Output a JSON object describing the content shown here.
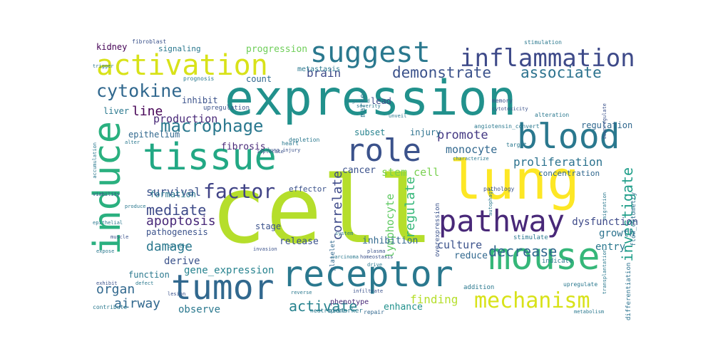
{
  "words": [
    {
      "text": "cell",
      "color": "#b5de2b",
      "vertical": false
    },
    {
      "text": "expression",
      "color": "#21918c",
      "vertical": false
    },
    {
      "text": "lung",
      "color": "#fde725",
      "vertical": false
    },
    {
      "text": "tissue",
      "color": "#22a884",
      "vertical": false
    },
    {
      "text": "receptor",
      "color": "#2a788e",
      "vertical": false
    },
    {
      "text": "mouse",
      "color": "#35b779",
      "vertical": false
    },
    {
      "text": "blood",
      "color": "#2a788e",
      "vertical": false
    },
    {
      "text": "induce",
      "color": "#2ab07f",
      "vertical": true
    },
    {
      "text": "tumor",
      "color": "#31688e",
      "vertical": false
    },
    {
      "text": "suggest",
      "color": "#2a788e",
      "vertical": false
    },
    {
      "text": "activation",
      "color": "#d8e219",
      "vertical": false
    },
    {
      "text": "role",
      "color": "#3b528b",
      "vertical": false
    },
    {
      "text": "pathway",
      "color": "#482878",
      "vertical": false
    },
    {
      "text": "inflammation",
      "color": "#3e4a89",
      "vertical": false
    },
    {
      "text": "mechanism",
      "color": "#d8e219",
      "vertical": false
    },
    {
      "text": "factor",
      "color": "#414487",
      "vertical": false
    },
    {
      "text": "cytokine",
      "color": "#31688e",
      "vertical": false
    },
    {
      "text": "macrophage",
      "color": "#2a788e",
      "vertical": false
    },
    {
      "text": "demonstrate",
      "color": "#3b528b",
      "vertical": false
    },
    {
      "text": "associate",
      "color": "#2c728e",
      "vertical": false
    },
    {
      "text": "mediate",
      "color": "#3e4a89",
      "vertical": false
    },
    {
      "text": "investigate",
      "color": "#1f9e89",
      "vertical": true
    },
    {
      "text": "decrease",
      "color": "#31688e",
      "vertical": false
    },
    {
      "text": "activate",
      "color": "#26828e",
      "vertical": false
    },
    {
      "text": "regulate",
      "color": "#35b779",
      "vertical": true
    },
    {
      "text": "correlate",
      "color": "#3e4a89",
      "vertical": true
    },
    {
      "text": "damage",
      "color": "#2a788e",
      "vertical": false
    },
    {
      "text": "apoptosis",
      "color": "#482878",
      "vertical": false
    },
    {
      "text": "survival",
      "color": "#3b528b",
      "vertical": false
    },
    {
      "text": "promote",
      "color": "#443983",
      "vertical": false
    },
    {
      "text": "proliferation",
      "color": "#2c728e",
      "vertical": false
    },
    {
      "text": "monocyte",
      "color": "#31688e",
      "vertical": false
    },
    {
      "text": "lymphocyte",
      "color": "#5ec962",
      "vertical": true
    },
    {
      "text": "stem_cell",
      "color": "#7ad151",
      "vertical": false
    },
    {
      "text": "line",
      "color": "#440154",
      "vertical": false
    },
    {
      "text": "brain",
      "color": "#3e4a89",
      "vertical": false
    },
    {
      "text": "production",
      "color": "#482878",
      "vertical": false
    },
    {
      "text": "organ",
      "color": "#31688e",
      "vertical": false
    },
    {
      "text": "airway",
      "color": "#31688e",
      "vertical": false
    },
    {
      "text": "finding",
      "color": "#b5de2b",
      "vertical": false
    },
    {
      "text": "progression",
      "color": "#6ece58",
      "vertical": false
    },
    {
      "text": "gene_expression",
      "color": "#26828e",
      "vertical": false
    },
    {
      "text": "observe",
      "color": "#2a788e",
      "vertical": false
    },
    {
      "text": "culture",
      "color": "#3b528b",
      "vertical": false
    },
    {
      "text": "growth",
      "color": "#2c728e",
      "vertical": false
    },
    {
      "text": "dysfunction",
      "color": "#3e4a89",
      "vertical": false
    },
    {
      "text": "entry",
      "color": "#2a788e",
      "vertical": false
    },
    {
      "text": "cancer",
      "color": "#3b528b",
      "vertical": false
    },
    {
      "text": "reduce",
      "color": "#31688e",
      "vertical": false
    },
    {
      "text": "derive",
      "color": "#3b528b",
      "vertical": false
    },
    {
      "text": "fibrosis",
      "color": "#482878",
      "vertical": false
    },
    {
      "text": "epithelium",
      "color": "#31688e",
      "vertical": false
    },
    {
      "text": "function",
      "color": "#2a788e",
      "vertical": false
    },
    {
      "text": "formation",
      "color": "#2a788e",
      "vertical": false
    },
    {
      "text": "inhibition",
      "color": "#31688e",
      "vertical": false
    },
    {
      "text": "release",
      "color": "#3b528b",
      "vertical": false
    },
    {
      "text": "stage",
      "color": "#3b528b",
      "vertical": false
    },
    {
      "text": "pathogenesis",
      "color": "#3b528b",
      "vertical": false
    },
    {
      "text": "enhance",
      "color": "#21918c",
      "vertical": false
    },
    {
      "text": "regulation",
      "color": "#31688e",
      "vertical": false
    },
    {
      "text": "concentration",
      "color": "#31688e",
      "vertical": false
    },
    {
      "text": "subset",
      "color": "#26828e",
      "vertical": false
    },
    {
      "text": "injury",
      "color": "#2c728e",
      "vertical": false
    },
    {
      "text": "count",
      "color": "#31688e",
      "vertical": false
    },
    {
      "text": "inhibit",
      "color": "#3b528b",
      "vertical": false
    },
    {
      "text": "liver",
      "color": "#2a788e",
      "vertical": false
    },
    {
      "text": "kidney",
      "color": "#440154",
      "vertical": false
    },
    {
      "text": "signaling",
      "color": "#2a788e",
      "vertical": false
    },
    {
      "text": "lead",
      "color": "#3e4a89",
      "vertical": false
    },
    {
      "text": "metastasis",
      "color": "#2a788e",
      "vertical": false
    },
    {
      "text": "marker",
      "color": "#2a788e",
      "vertical": true
    },
    {
      "text": "effector",
      "color": "#3b528b",
      "vertical": false
    },
    {
      "text": "platelet",
      "color": "#31688e",
      "vertical": true
    },
    {
      "text": "overexpression",
      "color": "#3b528b",
      "vertical": true
    },
    {
      "text": "differentiation",
      "color": "#2c728e",
      "vertical": true
    },
    {
      "text": "flow_cytometry",
      "color": "#2c728e",
      "vertical": true
    },
    {
      "text": "phenotype",
      "color": "#482878",
      "vertical": false
    },
    {
      "text": "biomarker",
      "color": "#2a788e",
      "vertical": false
    },
    {
      "text": "upregulate",
      "color": "#2a788e",
      "vertical": false
    },
    {
      "text": "addition",
      "color": "#2a788e",
      "vertical": false
    },
    {
      "text": "indicate",
      "color": "#2a788e",
      "vertical": false
    },
    {
      "text": "stimulate",
      "color": "#2a788e",
      "vertical": false
    },
    {
      "text": "stimulation",
      "color": "#2a788e",
      "vertical": false
    },
    {
      "text": "upregulation",
      "color": "#3b528b",
      "vertical": false
    },
    {
      "text": "angiotensin_convert",
      "color": "#2a788e",
      "vertical": false
    },
    {
      "text": "lung_injury",
      "color": "#3b528b",
      "vertical": false
    },
    {
      "text": "depletion",
      "color": "#2a788e",
      "vertical": false
    },
    {
      "text": "heart",
      "color": "#2a788e",
      "vertical": false
    },
    {
      "text": "cytotoxicity",
      "color": "#3b528b",
      "vertical": false
    },
    {
      "text": "pathology",
      "color": "#3b528b",
      "vertical": false
    },
    {
      "text": "characterize",
      "color": "#2a788e",
      "vertical": false
    },
    {
      "text": "target",
      "color": "#2a788e",
      "vertical": false
    },
    {
      "text": "memory",
      "color": "#3b528b",
      "vertical": false
    },
    {
      "text": "prognosis",
      "color": "#2a788e",
      "vertical": false
    },
    {
      "text": "alteration",
      "color": "#2a788e",
      "vertical": false
    },
    {
      "text": "neutrophil",
      "color": "#2a788e",
      "vertical": false
    },
    {
      "text": "repair",
      "color": "#31688e",
      "vertical": false
    },
    {
      "text": "invasion",
      "color": "#3b528b",
      "vertical": false
    },
    {
      "text": "metabolism",
      "color": "#2a788e",
      "vertical": false
    },
    {
      "text": "transplantation",
      "color": "#2a788e",
      "vertical": true
    },
    {
      "text": "migration",
      "color": "#2a788e",
      "vertical": true
    },
    {
      "text": "downregulate",
      "color": "#3b528b",
      "vertical": true
    },
    {
      "text": "autophagy",
      "color": "#2a788e",
      "vertical": true
    },
    {
      "text": "system",
      "color": "#2a788e",
      "vertical": false
    },
    {
      "text": "fibroblast",
      "color": "#3b528b",
      "vertical": false
    },
    {
      "text": "trigger",
      "color": "#2a788e",
      "vertical": false
    },
    {
      "text": "alter",
      "color": "#2a788e",
      "vertical": false
    },
    {
      "text": "viability",
      "color": "#3b528b",
      "vertical": false
    },
    {
      "text": "produce",
      "color": "#2a788e",
      "vertical": false
    },
    {
      "text": "epithelial",
      "color": "#2a788e",
      "vertical": false
    },
    {
      "text": "muscle",
      "color": "#3b528b",
      "vertical": false
    },
    {
      "text": "expose",
      "color": "#2a788e",
      "vertical": false
    },
    {
      "text": "exhibit",
      "color": "#3b528b",
      "vertical": false
    },
    {
      "text": "contribute",
      "color": "#2a788e",
      "vertical": false
    },
    {
      "text": "carcinoma",
      "color": "#2a788e",
      "vertical": false
    },
    {
      "text": "homeostasis",
      "color": "#3b528b",
      "vertical": false
    },
    {
      "text": "pattern",
      "color": "#2a788e",
      "vertical": false
    },
    {
      "text": "lesion",
      "color": "#3b528b",
      "vertical": false
    },
    {
      "text": "defect",
      "color": "#2a788e",
      "vertical": false
    },
    {
      "text": "accumulation",
      "color": "#2a788e",
      "vertical": true
    },
    {
      "text": "implicate",
      "color": "#3b528b",
      "vertical": false
    },
    {
      "text": "organoid",
      "color": "#2a788e",
      "vertical": false
    },
    {
      "text": "severity",
      "color": "#2a788e",
      "vertical": false
    },
    {
      "text": "plasma",
      "color": "#3b528b",
      "vertical": false
    },
    {
      "text": "drive",
      "color": "#2a788e",
      "vertical": false
    },
    {
      "text": "reverse",
      "color": "#2a788e",
      "vertical": false
    },
    {
      "text": "infiltrate",
      "color": "#3b528b",
      "vertical": false
    },
    {
      "text": "unveil",
      "color": "#2a788e",
      "vertical": false
    }
  ]
}
